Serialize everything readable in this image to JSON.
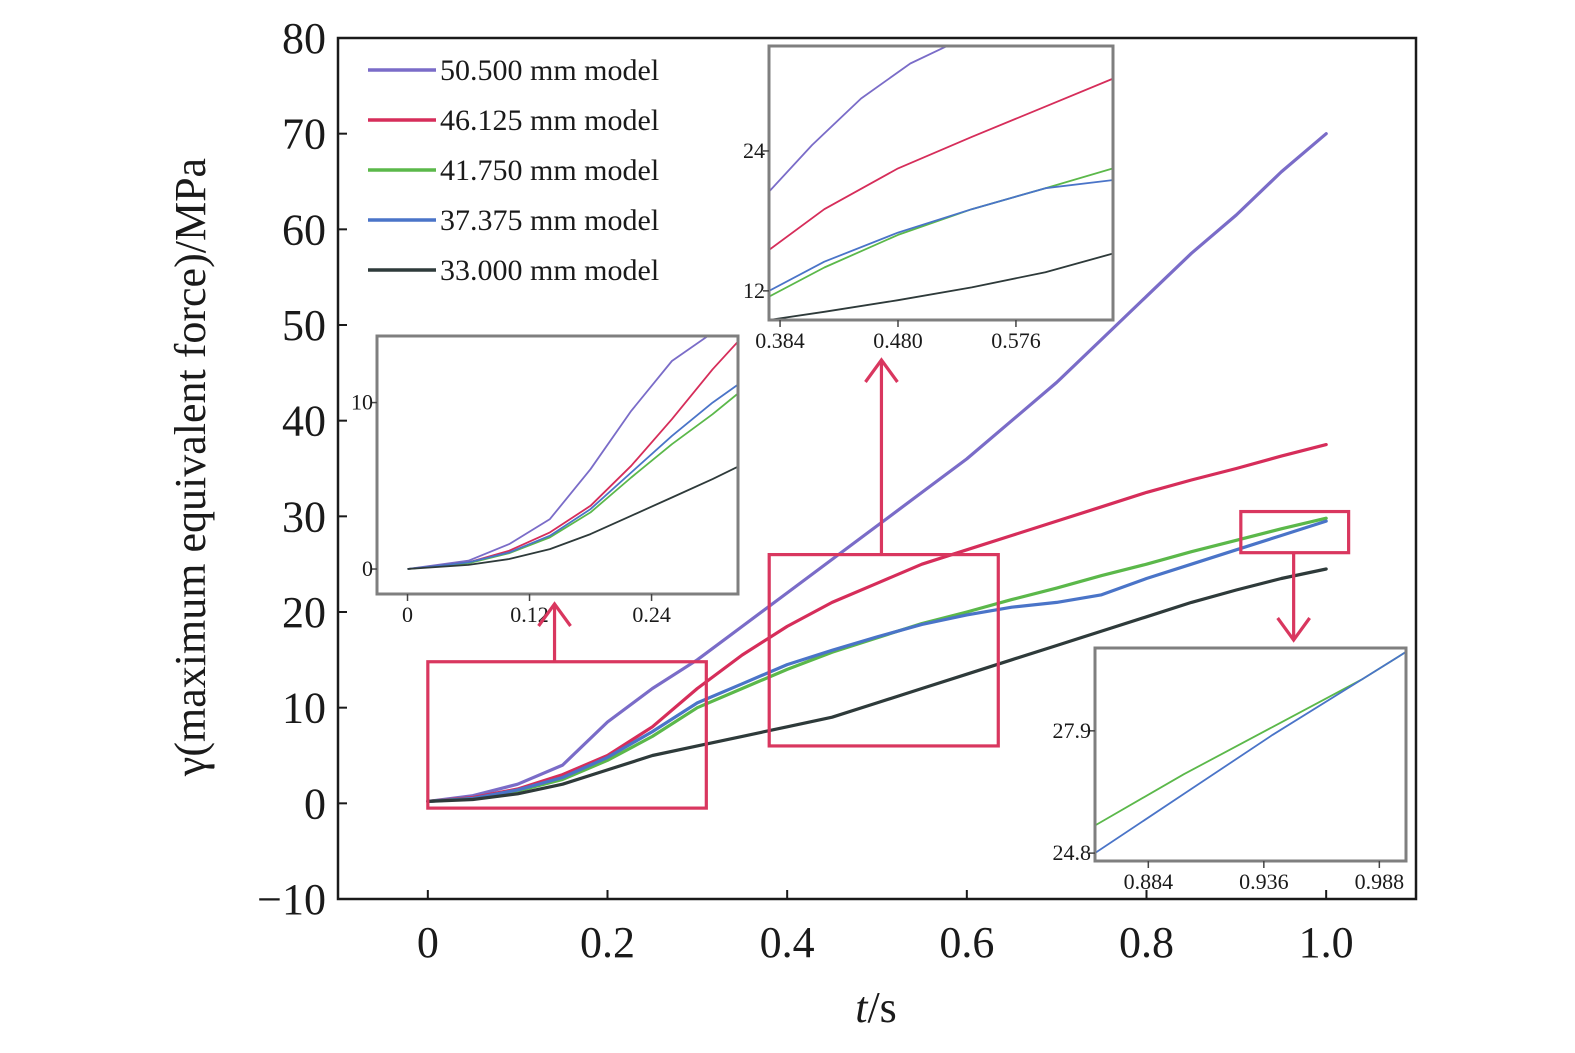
{
  "chart_data": {
    "type": "line",
    "xlabel_italic": "t",
    "xlabel_rest": "/s",
    "ylabel": "γ(maximum equivalent force)/MPa",
    "xlim": [
      -0.1,
      1.1
    ],
    "ylim": [
      -10,
      80
    ],
    "x_ticks": [
      0,
      0.2,
      0.4,
      0.6,
      0.8,
      1.0
    ],
    "x_tick_labels": [
      "0",
      "0.2",
      "0.4",
      "0.6",
      "0.8",
      "1.0"
    ],
    "y_ticks": [
      -10,
      0,
      10,
      20,
      30,
      40,
      50,
      60,
      70,
      80
    ],
    "y_tick_labels": [
      "−10",
      "0",
      "10",
      "20",
      "30",
      "40",
      "50",
      "60",
      "70",
      "80"
    ],
    "legend_position": "top-left",
    "colors": {
      "highlight": "#d9375f",
      "inset_frame": "#7f7f7f"
    },
    "series": [
      {
        "name": "50.500 mm model",
        "color": "#7a6cc8",
        "x": [
          0,
          0.05,
          0.1,
          0.15,
          0.2,
          0.25,
          0.3,
          0.35,
          0.4,
          0.45,
          0.5,
          0.55,
          0.6,
          0.65,
          0.7,
          0.75,
          0.8,
          0.85,
          0.9,
          0.95,
          1.0
        ],
        "y": [
          0.2,
          0.8,
          2.0,
          4.0,
          8.5,
          12.0,
          15.0,
          18.5,
          22.0,
          25.5,
          29.0,
          32.5,
          36.0,
          40.0,
          44.0,
          48.5,
          53.0,
          57.5,
          61.5,
          66.0,
          70.0
        ]
      },
      {
        "name": "46.125 mm model",
        "color": "#d62d5a",
        "x": [
          0,
          0.05,
          0.1,
          0.15,
          0.2,
          0.25,
          0.3,
          0.35,
          0.4,
          0.45,
          0.5,
          0.55,
          0.6,
          0.65,
          0.7,
          0.75,
          0.8,
          0.85,
          0.9,
          0.95,
          1.0
        ],
        "y": [
          0.2,
          0.6,
          1.5,
          3.0,
          5.0,
          8.0,
          12.0,
          15.5,
          18.5,
          21.0,
          23.0,
          25.0,
          26.5,
          28.0,
          29.5,
          31.0,
          32.5,
          33.8,
          35.0,
          36.3,
          37.5
        ]
      },
      {
        "name": "41.750 mm model",
        "color": "#5bb84a",
        "x": [
          0,
          0.05,
          0.1,
          0.15,
          0.2,
          0.25,
          0.3,
          0.35,
          0.4,
          0.45,
          0.5,
          0.55,
          0.6,
          0.65,
          0.7,
          0.75,
          0.8,
          0.85,
          0.9,
          0.95,
          1.0
        ],
        "y": [
          0.2,
          0.5,
          1.3,
          2.5,
          4.5,
          7.0,
          10.0,
          12.0,
          14.0,
          15.8,
          17.3,
          18.8,
          20.0,
          21.3,
          22.5,
          23.8,
          25.0,
          26.3,
          27.5,
          28.7,
          29.8
        ]
      },
      {
        "name": "37.375 mm model",
        "color": "#4a74c8",
        "x": [
          0,
          0.05,
          0.1,
          0.15,
          0.2,
          0.25,
          0.3,
          0.35,
          0.4,
          0.45,
          0.5,
          0.55,
          0.6,
          0.65,
          0.7,
          0.75,
          0.8,
          0.85,
          0.9,
          0.95,
          1.0
        ],
        "y": [
          0.2,
          0.5,
          1.4,
          2.7,
          4.8,
          7.5,
          10.5,
          12.5,
          14.5,
          16.0,
          17.4,
          18.7,
          19.7,
          20.5,
          21.0,
          21.8,
          23.5,
          25.0,
          26.5,
          28.0,
          29.5
        ]
      },
      {
        "name": "33.000 mm model",
        "color": "#2e3a3a",
        "x": [
          0,
          0.05,
          0.1,
          0.15,
          0.2,
          0.25,
          0.3,
          0.35,
          0.4,
          0.45,
          0.5,
          0.55,
          0.6,
          0.65,
          0.7,
          0.75,
          0.8,
          0.85,
          0.9,
          0.95,
          1.0
        ],
        "y": [
          0.2,
          0.4,
          1.0,
          2.0,
          3.5,
          5.0,
          6.0,
          7.0,
          8.0,
          9.0,
          10.5,
          12.0,
          13.5,
          15.0,
          16.5,
          18.0,
          19.5,
          21.0,
          22.3,
          23.5,
          24.5
        ]
      }
    ],
    "highlight_boxes": [
      {
        "x": [
          0,
          0.31
        ],
        "y": [
          -0.5,
          14.8
        ]
      },
      {
        "x": [
          0.38,
          0.635
        ],
        "y": [
          6,
          26
        ]
      },
      {
        "x": [
          0.905,
          1.025
        ],
        "y": [
          26.2,
          30.5
        ]
      }
    ],
    "insets": [
      {
        "xlim": [
          -0.03,
          0.325
        ],
        "ylim": [
          -1.5,
          14.0
        ],
        "x_ticks": [
          0,
          0.12,
          0.24
        ],
        "x_tick_labels": [
          "0",
          "0.12",
          "0.24"
        ],
        "y_ticks": [
          0,
          10
        ],
        "y_tick_labels": [
          "0",
          "10"
        ],
        "source_box": 0
      },
      {
        "xlim": [
          0.375,
          0.655
        ],
        "ylim": [
          9.5,
          33.0
        ],
        "x_ticks": [
          0.384,
          0.48,
          0.576
        ],
        "x_tick_labels": [
          "0.384",
          "0.480",
          "0.576"
        ],
        "y_ticks": [
          12,
          24
        ],
        "y_tick_labels": [
          "12",
          "24"
        ],
        "source_box": 1
      },
      {
        "xlim": [
          0.86,
          1.0
        ],
        "ylim": [
          24.6,
          30.0
        ],
        "x_ticks": [
          0.884,
          0.936,
          0.988
        ],
        "x_tick_labels": [
          "0.884",
          "0.936",
          "0.988"
        ],
        "y_ticks": [
          24.8,
          27.9
        ],
        "y_tick_labels": [
          "24.8",
          "27.9"
        ],
        "source_box": 2
      }
    ],
    "inset_curves": [
      [
        {
          "series": 0,
          "x": [
            0,
            0.06,
            0.1,
            0.14,
            0.18,
            0.22,
            0.26,
            0.3,
            0.33
          ],
          "y": [
            0,
            0.5,
            1.5,
            3.0,
            6.0,
            9.5,
            12.5,
            14.2,
            15.5
          ]
        },
        {
          "series": 1,
          "x": [
            0,
            0.06,
            0.1,
            0.14,
            0.18,
            0.22,
            0.26,
            0.3,
            0.33
          ],
          "y": [
            0,
            0.4,
            1.1,
            2.2,
            3.8,
            6.2,
            9.0,
            12.0,
            14.0
          ]
        },
        {
          "series": 2,
          "x": [
            0,
            0.06,
            0.1,
            0.14,
            0.18,
            0.22,
            0.26,
            0.3,
            0.33
          ],
          "y": [
            0,
            0.35,
            0.95,
            1.9,
            3.4,
            5.5,
            7.5,
            9.3,
            10.8
          ]
        },
        {
          "series": 3,
          "x": [
            0,
            0.06,
            0.1,
            0.14,
            0.18,
            0.22,
            0.26,
            0.3,
            0.33
          ],
          "y": [
            0,
            0.4,
            1.0,
            2.0,
            3.6,
            5.8,
            8.0,
            10.0,
            11.3
          ]
        },
        {
          "series": 4,
          "x": [
            0,
            0.06,
            0.1,
            0.14,
            0.18,
            0.22,
            0.26,
            0.3,
            0.33
          ],
          "y": [
            0,
            0.25,
            0.6,
            1.2,
            2.1,
            3.2,
            4.3,
            5.4,
            6.3
          ]
        }
      ],
      [
        {
          "series": 0,
          "x": [
            0.375,
            0.41,
            0.45,
            0.49,
            0.52,
            0.55
          ],
          "y": [
            20.5,
            24.5,
            28.5,
            31.5,
            33.0,
            34.0
          ]
        },
        {
          "series": 1,
          "x": [
            0.375,
            0.42,
            0.48,
            0.54,
            0.6,
            0.655
          ],
          "y": [
            15.5,
            19.0,
            22.5,
            25.2,
            27.8,
            30.2
          ]
        },
        {
          "series": 2,
          "x": [
            0.375,
            0.42,
            0.48,
            0.54,
            0.6,
            0.655
          ],
          "y": [
            11.5,
            14.0,
            16.8,
            19.0,
            20.8,
            22.5
          ]
        },
        {
          "series": 3,
          "x": [
            0.375,
            0.42,
            0.48,
            0.54,
            0.6,
            0.655
          ],
          "y": [
            12.0,
            14.5,
            17.0,
            19.0,
            20.8,
            21.5
          ]
        },
        {
          "series": 4,
          "x": [
            0.375,
            0.42,
            0.48,
            0.54,
            0.6,
            0.655
          ],
          "y": [
            9.5,
            10.2,
            11.2,
            12.3,
            13.6,
            15.2
          ]
        }
      ],
      [
        {
          "series": 2,
          "x": [
            0.86,
            0.9,
            0.94,
            0.98,
            1.0
          ],
          "y": [
            25.5,
            26.8,
            28.0,
            29.2,
            29.9
          ]
        },
        {
          "series": 3,
          "x": [
            0.86,
            0.9,
            0.94,
            0.98,
            1.0
          ],
          "y": [
            24.8,
            26.3,
            27.8,
            29.2,
            29.9
          ]
        }
      ]
    ]
  }
}
